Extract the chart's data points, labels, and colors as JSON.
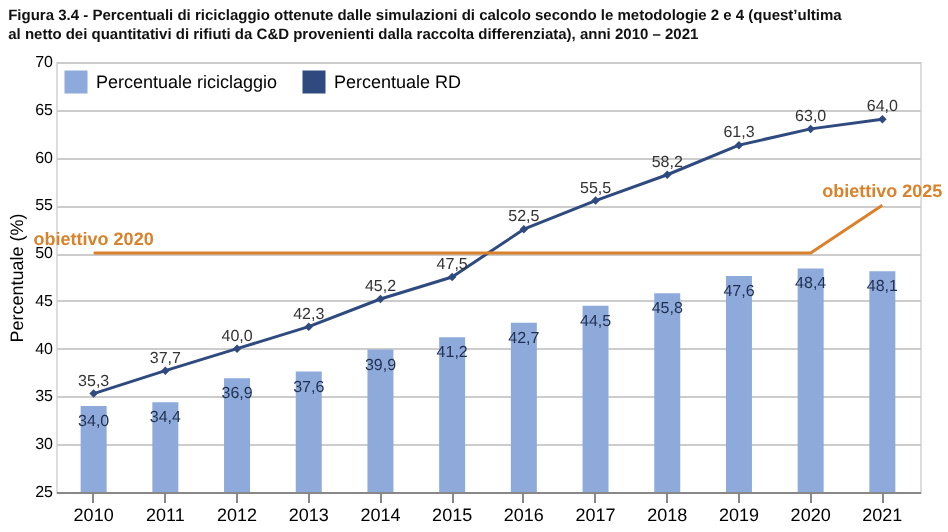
{
  "chart_data": {
    "type": "bar",
    "title": "Figura 3.4 - Percentuali di riciclaggio ottenute dalle simulazioni di calcolo secondo le metodologie 2 e 4 (quest’ultima al netto dei quantitativi di rifiuti da C&D provenienti dalla raccolta differenziata), anni 2010 – 2021",
    "ylabel": "Percentuale (%)",
    "categories": [
      "2010",
      "2011",
      "2012",
      "2013",
      "2014",
      "2015",
      "2016",
      "2017",
      "2018",
      "2019",
      "2020",
      "2021"
    ],
    "series": [
      {
        "name": "Percentuale riciclaggio",
        "color": "#8eaadb",
        "values": [
          34.0,
          34.4,
          36.9,
          37.6,
          39.9,
          41.2,
          42.7,
          44.5,
          45.8,
          47.6,
          48.4,
          48.1
        ],
        "value_labels": [
          "34,0",
          "34,4",
          "36,9",
          "37,6",
          "39,9",
          "41,2",
          "42,7",
          "44,5",
          "45,8",
          "47,6",
          "48,4",
          "48,1"
        ]
      },
      {
        "name": "Percentuale RD",
        "type": "line",
        "color": "#2f4a7f",
        "marker": "diamond",
        "values": [
          35.3,
          37.7,
          40.0,
          42.3,
          45.2,
          47.5,
          52.5,
          55.5,
          58.2,
          61.3,
          63.0,
          64.0
        ],
        "value_labels": [
          "35,3",
          "37,7",
          "40,0",
          "42,3",
          "45,2",
          "47,5",
          "52,5",
          "55,5",
          "58,2",
          "61,3",
          "63,0",
          "64,0"
        ]
      },
      {
        "type": "line",
        "color": "#d9822b",
        "marker": "none",
        "values": [
          50,
          50,
          50,
          50,
          50,
          50,
          50,
          50,
          50,
          50,
          50,
          55
        ]
      }
    ],
    "annotations": [
      {
        "text": "obiettivo 2020",
        "x": "2010",
        "y": 50
      },
      {
        "text": "obiettivo 2025",
        "x": "2021",
        "y": 55
      }
    ],
    "ylim": [
      25,
      70
    ],
    "yticks": [
      25,
      30,
      35,
      40,
      45,
      50,
      55,
      60,
      65,
      70
    ],
    "grid": "y",
    "legend": "top left"
  }
}
